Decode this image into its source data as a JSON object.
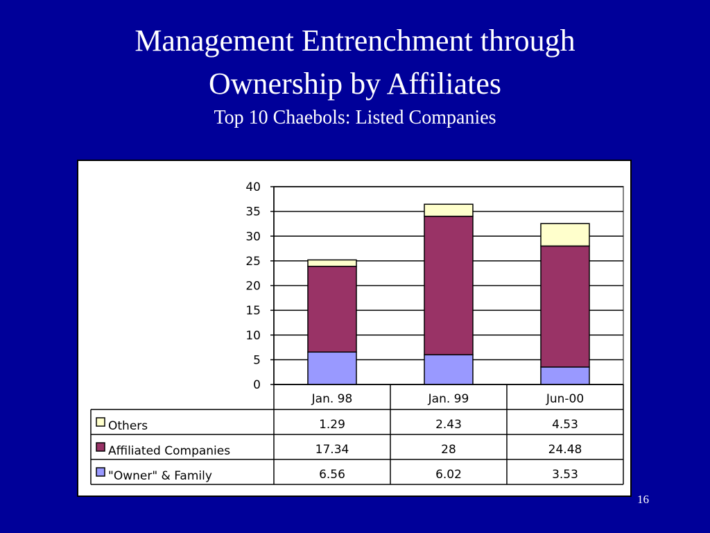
{
  "slide": {
    "title_line1": "Management Entrenchment through",
    "title_line2": "Ownership by Affiliates",
    "subtitle": "Top 10 Chaebols: Listed Companies",
    "page_number": "16"
  },
  "chart_data": {
    "type": "bar",
    "stacked": true,
    "categories": [
      "Jan. 98",
      "Jan. 99",
      "Jun-00"
    ],
    "series": [
      {
        "name": "\"Owner\" & Family",
        "values": [
          6.56,
          6.02,
          3.53
        ],
        "value_labels": [
          "6.56",
          "6.02",
          "3.53"
        ],
        "color": "#9999ff"
      },
      {
        "name": "Affiliated Companies",
        "values": [
          17.34,
          28,
          24.48
        ],
        "value_labels": [
          "17.34",
          "28",
          "24.48"
        ],
        "color": "#993366"
      },
      {
        "name": "Others",
        "values": [
          1.29,
          2.43,
          4.53
        ],
        "value_labels": [
          "1.29",
          "2.43",
          "4.53"
        ],
        "color": "#ffffcc"
      }
    ],
    "ylim": [
      0,
      40
    ],
    "yticks": [
      0,
      5,
      10,
      15,
      20,
      25,
      30,
      35,
      40
    ],
    "ytick_labels": [
      "0",
      "5",
      "10",
      "15",
      "20",
      "25",
      "30",
      "35",
      "40"
    ],
    "grid": true,
    "data_table": true,
    "legend_placement": "data-table"
  }
}
